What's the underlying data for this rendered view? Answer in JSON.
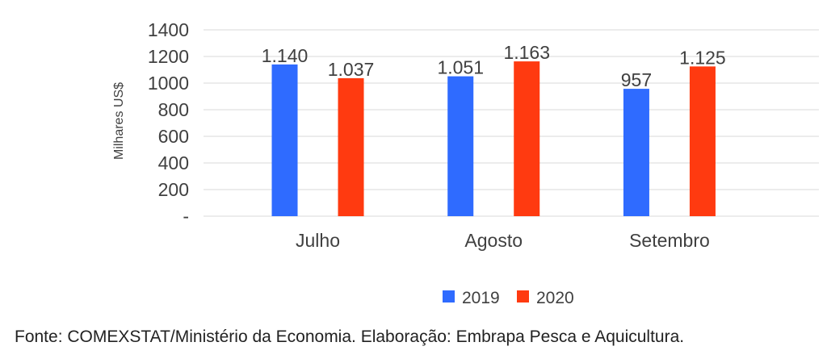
{
  "chart_data": {
    "type": "bar",
    "categories": [
      "Julho",
      "Agosto",
      "Setembro"
    ],
    "series": [
      {
        "name": "2019",
        "color": "#2f6bff",
        "values": [
          1140,
          1051,
          957
        ],
        "labels": [
          "1.140",
          "1.051",
          "957"
        ]
      },
      {
        "name": "2020",
        "color": "#ff3a10",
        "values": [
          1037,
          1163,
          1125
        ],
        "labels": [
          "1.037",
          "1.163",
          "1.125"
        ]
      }
    ],
    "ylabel": "Milhares US$",
    "ylim": [
      0,
      1400
    ],
    "yticks": [
      0,
      200,
      400,
      600,
      800,
      1000,
      1200,
      1400
    ],
    "ytick_labels": [
      "-",
      "200",
      "400",
      "600",
      "800",
      "1000",
      "1200",
      "1400"
    ],
    "grid": true,
    "legend": "bottom"
  },
  "source_note": "Fonte: COMEXSTAT/Ministério da Economia. Elaboração: Embrapa Pesca e Aquicultura."
}
